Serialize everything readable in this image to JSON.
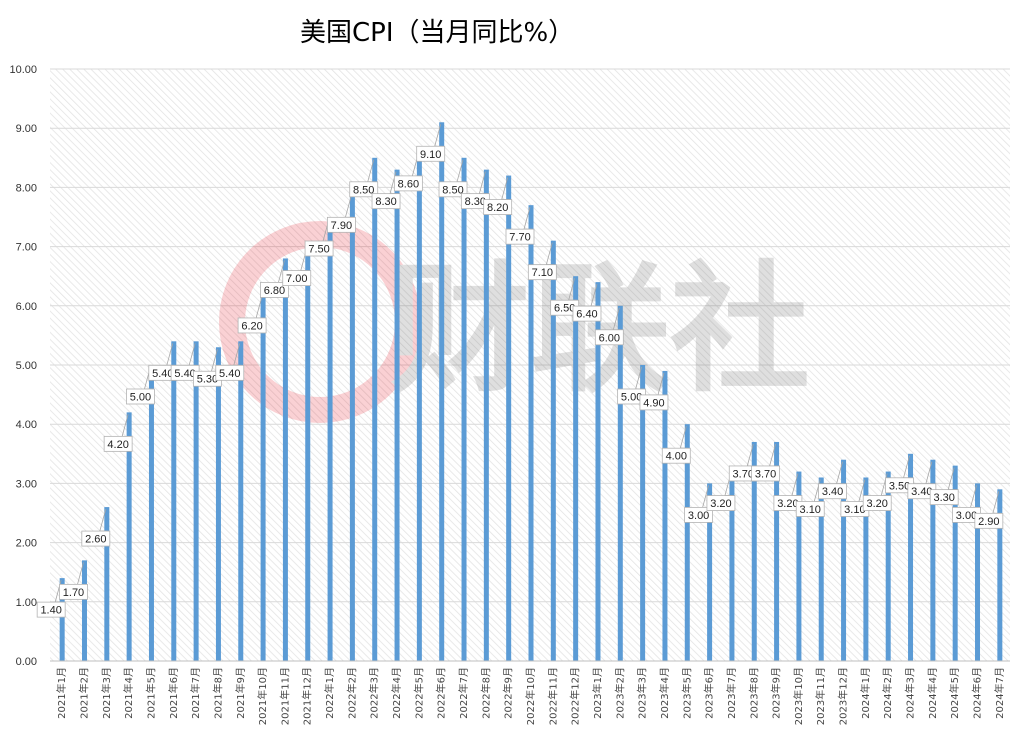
{
  "chart_data": {
    "type": "bar",
    "title": "美国CPI（当月同比%）",
    "watermark": "财联社",
    "colors": {
      "bar": "#5b9bd5",
      "grid": "#d9d9d9",
      "watermark": "#e60012"
    },
    "grid": true,
    "ylim": [
      0,
      10
    ],
    "yticks": [
      "0.00",
      "1.00",
      "2.00",
      "3.00",
      "4.00",
      "5.00",
      "6.00",
      "7.00",
      "8.00",
      "9.00",
      "10.00"
    ],
    "categories": [
      "2021年1月",
      "2021年2月",
      "2021年3月",
      "2021年4月",
      "2021年5月",
      "2021年6月",
      "2021年7月",
      "2021年8月",
      "2021年9月",
      "2021年10月",
      "2021年11月",
      "2021年12月",
      "2022年1月",
      "2022年2月",
      "2022年3月",
      "2022年4月",
      "2022年5月",
      "2022年6月",
      "2022年7月",
      "2022年8月",
      "2022年9月",
      "2022年10月",
      "2022年11月",
      "2022年12月",
      "2023年1月",
      "2023年2月",
      "2023年3月",
      "2023年4月",
      "2023年5月",
      "2023年6月",
      "2023年7月",
      "2023年8月",
      "2023年9月",
      "2023年10月",
      "2023年11月",
      "2023年12月",
      "2024年1月",
      "2024年2月",
      "2024年3月",
      "2024年4月",
      "2024年5月",
      "2024年6月",
      "2024年7月"
    ],
    "values": [
      1.4,
      1.7,
      2.6,
      4.2,
      5.0,
      5.4,
      5.4,
      5.3,
      5.4,
      6.2,
      6.8,
      7.0,
      7.5,
      7.9,
      8.5,
      8.3,
      8.6,
      9.1,
      8.5,
      8.3,
      8.2,
      7.7,
      7.1,
      6.5,
      6.4,
      6.0,
      5.0,
      4.9,
      4.0,
      3.0,
      3.2,
      3.7,
      3.7,
      3.2,
      3.1,
      3.4,
      3.1,
      3.2,
      3.5,
      3.4,
      3.3,
      3.0,
      2.9
    ],
    "data_labels": [
      "1.40",
      "1.70",
      "2.60",
      "4.20",
      "5.00",
      "5.40",
      "5.40",
      "5.30",
      "5.40",
      "6.20",
      "6.80",
      "7.00",
      "7.50",
      "7.90",
      "8.50",
      "8.30",
      "8.60",
      "9.10",
      "8.50",
      "8.30",
      "8.20",
      "7.70",
      "7.10",
      "6.50",
      "6.40",
      "6.00",
      "5.00",
      "4.90",
      "4.00",
      "3.00",
      "3.20",
      "3.70",
      "3.70",
      "3.20",
      "3.10",
      "3.40",
      "3.10",
      "3.20",
      "3.50",
      "3.40",
      "3.30",
      "3.00",
      "2.90"
    ]
  }
}
